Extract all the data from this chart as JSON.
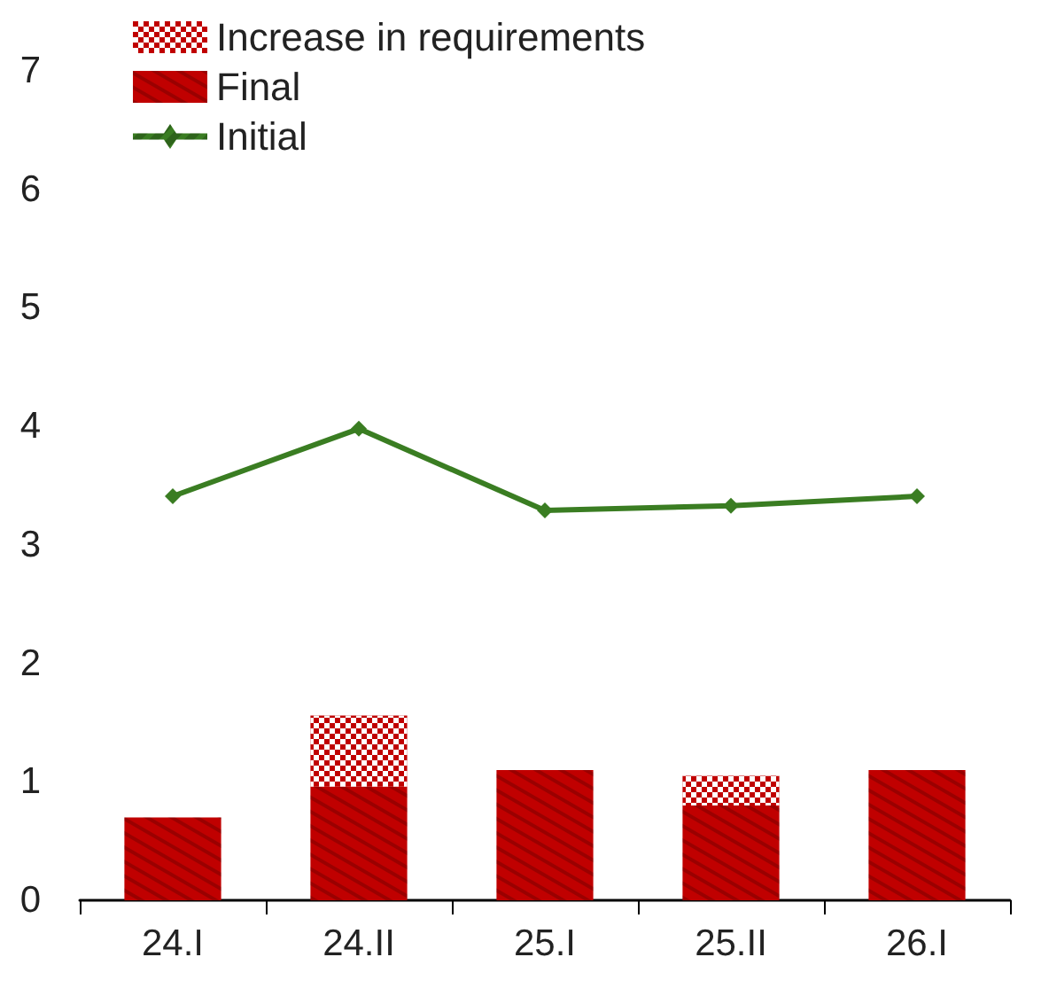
{
  "chart_data": {
    "type": "bar",
    "stacked": true,
    "categories": [
      "24.I",
      "24.II",
      "25.I",
      "25.II",
      "26.I"
    ],
    "series": [
      {
        "name": "Final",
        "color": "#c00000",
        "values": [
          0.7,
          0.96,
          1.1,
          0.8,
          1.1
        ]
      },
      {
        "name": "Increase in requirements",
        "color": "#c00000",
        "values": [
          0,
          0.6,
          0,
          0.25,
          0
        ]
      },
      {
        "name": "Initial",
        "type": "line",
        "color": "#3a7d22",
        "marker": "diamond",
        "values": [
          3.41,
          3.98,
          3.29,
          3.33,
          3.41
        ]
      }
    ],
    "ylim": [
      0,
      7
    ],
    "yticks": [
      0,
      1,
      2,
      3,
      4,
      5,
      6,
      7
    ],
    "grid": false,
    "legend": "top left"
  }
}
